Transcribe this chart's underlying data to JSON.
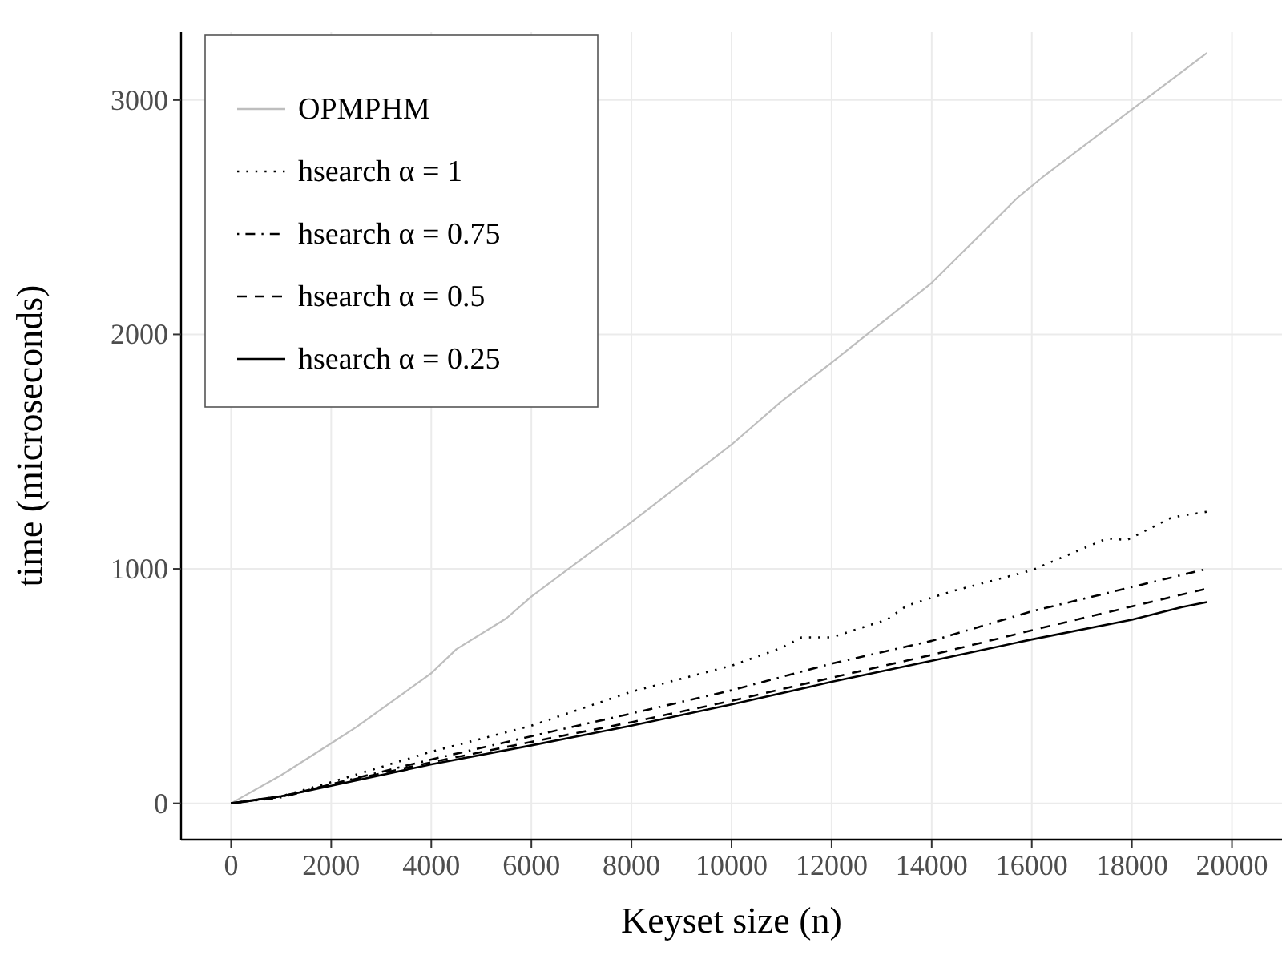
{
  "chart_data": {
    "type": "line",
    "xlabel": "Keyset size (n)",
    "ylabel": "time (microseconds)",
    "xlim": [
      -1000,
      21000
    ],
    "ylim": [
      -155,
      3290
    ],
    "xticks": [
      0,
      2000,
      4000,
      6000,
      8000,
      10000,
      12000,
      14000,
      16000,
      18000,
      20000
    ],
    "yticks": [
      0,
      1000,
      2000,
      3000
    ],
    "grid": true,
    "legend": "top left",
    "series": [
      {
        "name": "OPMPHM",
        "color": "#bebebe",
        "line_style": "solid",
        "x": [
          0,
          1000,
          2000,
          2500,
          4000,
          4500,
          5500,
          6000,
          8000,
          10000,
          11000,
          12000,
          14000,
          15700,
          16200,
          18000,
          19500
        ],
        "values": [
          0,
          120,
          256,
          325,
          555,
          657,
          789,
          882,
          1200,
          1530,
          1715,
          1880,
          2220,
          2580,
          2668,
          2960,
          3201
        ]
      },
      {
        "name": "hsearch α = 1",
        "color": "#000000",
        "line_style": "dotted",
        "x": [
          0,
          1000,
          2000,
          4000,
          6000,
          8000,
          10000,
          11000,
          11400,
          12000,
          13100,
          13500,
          14400,
          16000,
          17500,
          17900,
          18800,
          19500
        ],
        "values": [
          0,
          30,
          90,
          220,
          331,
          476,
          587,
          663,
          708,
          708,
          783,
          843,
          904,
          994,
          1130,
          1123,
          1220,
          1244
        ]
      },
      {
        "name": "hsearch α = 0.75",
        "color": "#000000",
        "line_style": "dotdash",
        "x": [
          0,
          1000,
          2000,
          4000,
          6000,
          8000,
          10000,
          12000,
          14000,
          16000,
          19500
        ],
        "values": [
          0,
          25,
          81,
          187,
          286,
          383,
          482,
          596,
          693,
          819,
          1000
        ]
      },
      {
        "name": "hsearch α = 0.5",
        "color": "#000000",
        "line_style": "dashed",
        "x": [
          0,
          1000,
          2000,
          4000,
          6000,
          8000,
          10000,
          12000,
          14000,
          16000,
          19500
        ],
        "values": [
          0,
          28,
          81,
          175,
          262,
          346,
          437,
          536,
          633,
          738,
          916
        ]
      },
      {
        "name": "hsearch α = 0.25",
        "color": "#000000",
        "line_style": "solid",
        "x": [
          0,
          1000,
          2000,
          4000,
          6000,
          8000,
          10000,
          12000,
          14000,
          16000,
          18000,
          19000,
          19500
        ],
        "values": [
          0,
          30,
          75,
          166,
          247,
          331,
          422,
          518,
          608,
          699,
          783,
          837,
          858
        ]
      }
    ]
  }
}
